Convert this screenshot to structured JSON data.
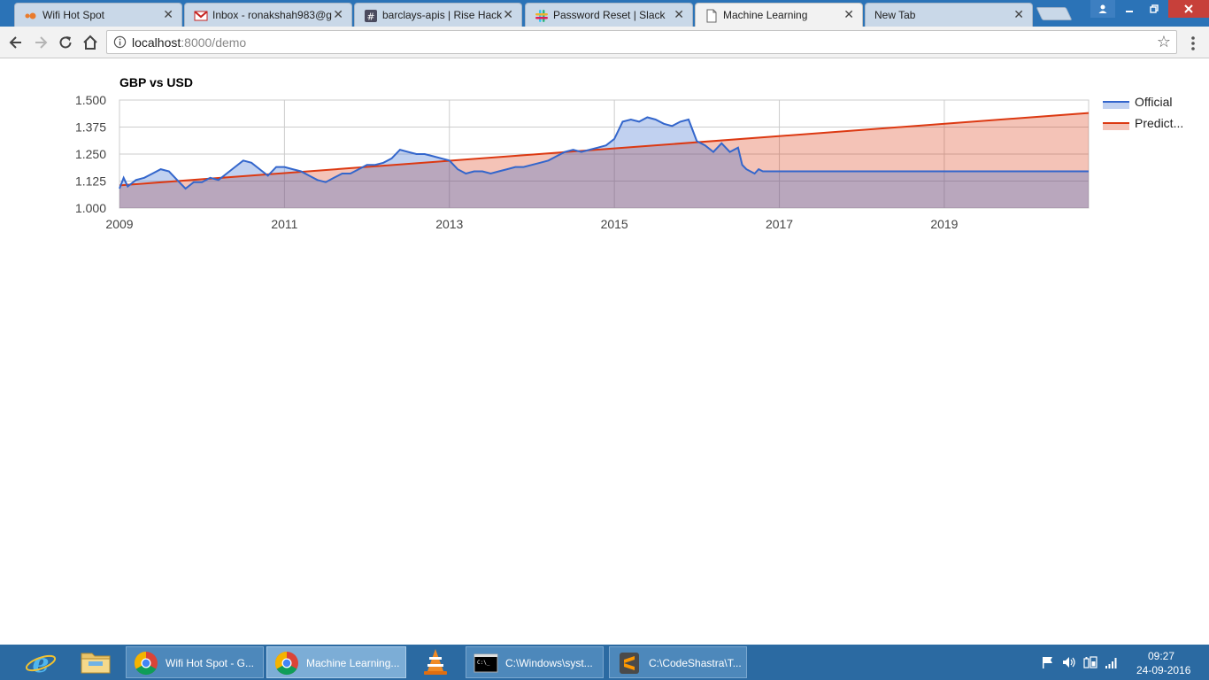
{
  "browser": {
    "tabs": [
      {
        "title": "Wifi Hot Spot",
        "icon": "orange-dots-icon"
      },
      {
        "title": "Inbox - ronakshah983@g",
        "icon": "gmail-icon"
      },
      {
        "title": "barclays-apis | Rise Hack",
        "icon": "hashtag-icon"
      },
      {
        "title": "Password Reset | Slack",
        "icon": "slack-icon"
      },
      {
        "title": "Machine Learning",
        "icon": "page-icon",
        "active": true
      },
      {
        "title": "New Tab",
        "icon": "none"
      }
    ],
    "close_glyph": "✕",
    "url_host": "localhost",
    "url_path": ":8000/demo",
    "star_glyph": "☆"
  },
  "chart_data": {
    "type": "area",
    "title": "GBP vs USD",
    "xlabel": "",
    "ylabel": "",
    "xlim": [
      2009,
      2020.75
    ],
    "ylim": [
      1.0,
      1.5
    ],
    "y_ticks": [
      "1.500",
      "1.375",
      "1.250",
      "1.125",
      "1.000"
    ],
    "y_tick_values": [
      1.5,
      1.375,
      1.25,
      1.125,
      1.0
    ],
    "x_ticks": [
      "2009",
      "2011",
      "2013",
      "2015",
      "2017",
      "2019"
    ],
    "x_tick_values": [
      2009,
      2011,
      2013,
      2015,
      2017,
      2019
    ],
    "grid": true,
    "legend_position": "right",
    "series": [
      {
        "name": "Official",
        "color": "#3366cc",
        "fill": "#3366cc",
        "x": [
          2009.0,
          2009.05,
          2009.1,
          2009.2,
          2009.3,
          2009.4,
          2009.5,
          2009.6,
          2009.7,
          2009.8,
          2009.9,
          2010.0,
          2010.1,
          2010.2,
          2010.3,
          2010.4,
          2010.5,
          2010.6,
          2010.7,
          2010.8,
          2010.9,
          2011.0,
          2011.1,
          2011.2,
          2011.3,
          2011.4,
          2011.5,
          2011.6,
          2011.7,
          2011.8,
          2011.9,
          2012.0,
          2012.1,
          2012.2,
          2012.3,
          2012.4,
          2012.5,
          2012.6,
          2012.7,
          2012.8,
          2012.9,
          2013.0,
          2013.1,
          2013.2,
          2013.3,
          2013.4,
          2013.5,
          2013.6,
          2013.7,
          2013.8,
          2013.9,
          2014.0,
          2014.1,
          2014.2,
          2014.3,
          2014.4,
          2014.5,
          2014.6,
          2014.7,
          2014.8,
          2014.9,
          2015.0,
          2015.1,
          2015.2,
          2015.3,
          2015.4,
          2015.5,
          2015.6,
          2015.7,
          2015.8,
          2015.9,
          2016.0,
          2016.1,
          2016.2,
          2016.3,
          2016.4,
          2016.5,
          2016.55,
          2016.6,
          2016.7,
          2016.75,
          2016.8,
          2017.5,
          2018.5,
          2019.5,
          2020.75
        ],
        "y": [
          1.09,
          1.14,
          1.1,
          1.13,
          1.14,
          1.16,
          1.18,
          1.17,
          1.13,
          1.09,
          1.12,
          1.12,
          1.14,
          1.13,
          1.16,
          1.19,
          1.22,
          1.21,
          1.18,
          1.15,
          1.19,
          1.19,
          1.18,
          1.17,
          1.15,
          1.13,
          1.12,
          1.14,
          1.16,
          1.16,
          1.18,
          1.2,
          1.2,
          1.21,
          1.23,
          1.27,
          1.26,
          1.25,
          1.25,
          1.24,
          1.23,
          1.22,
          1.18,
          1.16,
          1.17,
          1.17,
          1.16,
          1.17,
          1.18,
          1.19,
          1.19,
          1.2,
          1.21,
          1.22,
          1.24,
          1.26,
          1.27,
          1.26,
          1.27,
          1.28,
          1.29,
          1.32,
          1.4,
          1.41,
          1.4,
          1.42,
          1.41,
          1.39,
          1.38,
          1.4,
          1.41,
          1.31,
          1.29,
          1.26,
          1.3,
          1.26,
          1.28,
          1.2,
          1.18,
          1.16,
          1.18,
          1.17,
          1.17,
          1.17,
          1.17,
          1.17
        ]
      },
      {
        "name": "Predict...",
        "color": "#dc3912",
        "fill": "#dc3912",
        "x": [
          2009.0,
          2020.75
        ],
        "y": [
          1.105,
          1.44
        ]
      }
    ]
  },
  "taskbar": {
    "pinned": [
      {
        "name": "internet-explorer-icon"
      },
      {
        "name": "file-explorer-icon"
      },
      {
        "name": "vlc-icon"
      }
    ],
    "tasks": [
      {
        "label": "Wifi Hot Spot - G...",
        "icon": "chrome-icon"
      },
      {
        "label": "Machine Learning...",
        "icon": "chrome-icon",
        "active": true
      },
      {
        "label": "C:\\Windows\\syst...",
        "icon": "cmd-icon"
      },
      {
        "label": "C:\\CodeShastra\\T...",
        "icon": "sublime-icon"
      }
    ],
    "clock_time": "09:27",
    "clock_date": "24-09-2016"
  }
}
